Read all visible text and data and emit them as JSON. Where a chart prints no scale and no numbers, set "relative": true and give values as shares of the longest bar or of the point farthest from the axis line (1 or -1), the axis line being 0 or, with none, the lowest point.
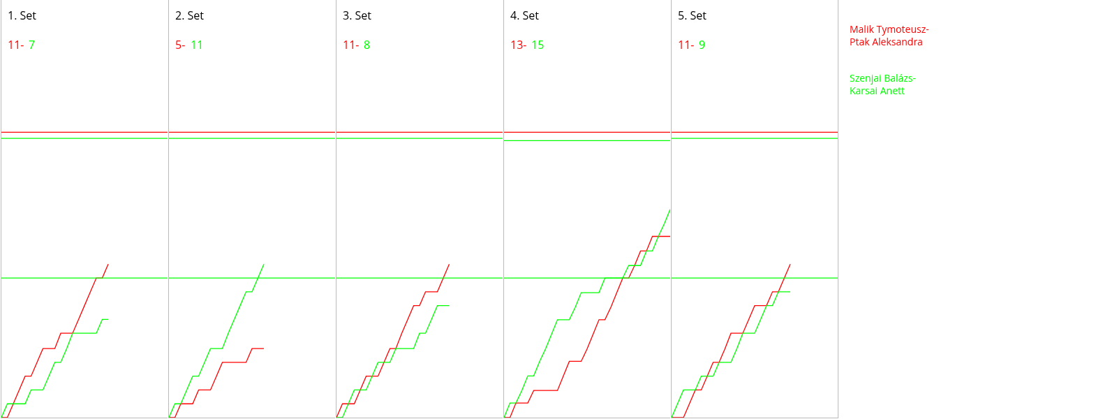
{
  "chart_data": [
    {
      "type": "line",
      "relative": true,
      "title": "1. Set",
      "annotations": [
        "11-",
        "7"
      ],
      "categories": [
        null,
        null,
        null,
        null,
        null,
        null,
        null,
        null,
        null,
        null,
        null,
        null,
        null,
        null,
        null,
        null,
        null,
        null,
        null
      ],
      "series": [
        {
          "color": "#ff0000",
          "values": [
            0,
            0,
            0.09,
            0.18,
            0.27,
            0.27,
            0.36,
            0.45,
            0.45,
            0.45,
            0.55,
            0.55,
            0.55,
            0.64,
            0.73,
            0.82,
            0.91,
            0.91,
            1
          ]
        },
        {
          "color": "#00ff00",
          "values": [
            0,
            0.09,
            0.09,
            0.09,
            0.09,
            0.18,
            0.18,
            0.18,
            0.27,
            0.36,
            0.36,
            0.45,
            0.55,
            0.55,
            0.55,
            0.55,
            0.55,
            0.64,
            0.64
          ]
        }
      ],
      "ref_lines": [
        {
          "axis": "y",
          "value": 1.86,
          "color": "#ff0000"
        },
        {
          "axis": "y",
          "value": 1.82,
          "color": "#00ff00"
        },
        {
          "axis": "y",
          "value": 0.91,
          "color": "#00ff00"
        }
      ]
    },
    {
      "type": "line",
      "relative": true,
      "title": "2. Set",
      "annotations": [
        "5-",
        "11"
      ],
      "categories": [
        null,
        null,
        null,
        null,
        null,
        null,
        null,
        null,
        null,
        null,
        null,
        null,
        null,
        null,
        null,
        null,
        null
      ],
      "series": [
        {
          "color": "#ff0000",
          "values": [
            0,
            0,
            0.09,
            0.09,
            0.09,
            0.18,
            0.18,
            0.18,
            0.27,
            0.36,
            0.36,
            0.36,
            0.36,
            0.36,
            0.45,
            0.45,
            0.45
          ]
        },
        {
          "color": "#00ff00",
          "values": [
            0,
            0.09,
            0.09,
            0.18,
            0.27,
            0.27,
            0.36,
            0.45,
            0.45,
            0.45,
            0.55,
            0.64,
            0.73,
            0.82,
            0.82,
            0.91,
            1
          ]
        }
      ],
      "ref_lines": [
        {
          "axis": "y",
          "value": 1.86,
          "color": "#ff0000"
        },
        {
          "axis": "y",
          "value": 1.82,
          "color": "#00ff00"
        },
        {
          "axis": "y",
          "value": 0.91,
          "color": "#00ff00"
        }
      ]
    },
    {
      "type": "line",
      "relative": true,
      "title": "3. Set",
      "annotations": [
        "11-",
        "8"
      ],
      "categories": [
        null,
        null,
        null,
        null,
        null,
        null,
        null,
        null,
        null,
        null,
        null,
        null,
        null,
        null,
        null,
        null,
        null,
        null,
        null,
        null
      ],
      "series": [
        {
          "color": "#ff0000",
          "values": [
            0,
            0.09,
            0.09,
            0.09,
            0.18,
            0.27,
            0.27,
            0.27,
            0.36,
            0.45,
            0.45,
            0.55,
            0.64,
            0.73,
            0.73,
            0.82,
            0.82,
            0.82,
            0.91,
            1
          ]
        },
        {
          "color": "#00ff00",
          "values": [
            0,
            0,
            0.09,
            0.18,
            0.18,
            0.18,
            0.27,
            0.36,
            0.36,
            0.36,
            0.45,
            0.45,
            0.45,
            0.45,
            0.55,
            0.55,
            0.64,
            0.73,
            0.73,
            0.73
          ]
        }
      ],
      "ref_lines": [
        {
          "axis": "y",
          "value": 1.86,
          "color": "#ff0000"
        },
        {
          "axis": "y",
          "value": 1.82,
          "color": "#00ff00"
        },
        {
          "axis": "y",
          "value": 0.91,
          "color": "#00ff00"
        }
      ]
    },
    {
      "type": "line",
      "relative": true,
      "title": "4. Set",
      "annotations": [
        "13-",
        "15"
      ],
      "categories": [
        null,
        null,
        null,
        null,
        null,
        null,
        null,
        null,
        null,
        null,
        null,
        null,
        null,
        null,
        null,
        null,
        null,
        null,
        null,
        null,
        null,
        null,
        null,
        null,
        null,
        null,
        null,
        null,
        null
      ],
      "series": [
        {
          "color": "#ff0000",
          "values": [
            0,
            0,
            0.07,
            0.07,
            0.07,
            0.13,
            0.13,
            0.13,
            0.13,
            0.13,
            0.2,
            0.27,
            0.27,
            0.27,
            0.33,
            0.4,
            0.47,
            0.47,
            0.53,
            0.6,
            0.67,
            0.67,
            0.73,
            0.8,
            0.8,
            0.87,
            0.87,
            0.87,
            0.87
          ]
        },
        {
          "color": "#00ff00",
          "values": [
            0,
            0.07,
            0.07,
            0.13,
            0.2,
            0.2,
            0.27,
            0.33,
            0.4,
            0.47,
            0.47,
            0.47,
            0.53,
            0.6,
            0.6,
            0.6,
            0.6,
            0.67,
            0.67,
            0.67,
            0.67,
            0.73,
            0.73,
            0.73,
            0.8,
            0.8,
            0.87,
            0.93,
            1
          ]
        }
      ],
      "ref_lines": [
        {
          "axis": "y",
          "value": 1.37,
          "color": "#ff0000"
        },
        {
          "axis": "y",
          "value": 1.33,
          "color": "#00ff00"
        },
        {
          "axis": "y",
          "value": 0.67,
          "color": "#00ff00"
        }
      ]
    },
    {
      "type": "line",
      "relative": true,
      "title": "5. Set",
      "annotations": [
        "11-",
        "9"
      ],
      "categories": [
        null,
        null,
        null,
        null,
        null,
        null,
        null,
        null,
        null,
        null,
        null,
        null,
        null,
        null,
        null,
        null,
        null,
        null,
        null,
        null,
        null
      ],
      "series": [
        {
          "name": "Malik Tymoteusz-Ptak Aleksandra",
          "color": "#ff0000",
          "values": [
            0,
            0,
            0,
            0.09,
            0.18,
            0.18,
            0.27,
            0.36,
            0.36,
            0.45,
            0.55,
            0.55,
            0.55,
            0.64,
            0.73,
            0.73,
            0.73,
            0.82,
            0.82,
            0.91,
            1
          ]
        },
        {
          "name": "Szenjai Balázs-Karsai Anett",
          "color": "#00ff00",
          "values": [
            0,
            0.09,
            0.18,
            0.18,
            0.18,
            0.27,
            0.27,
            0.27,
            0.36,
            0.36,
            0.36,
            0.45,
            0.55,
            0.55,
            0.55,
            0.64,
            0.73,
            0.73,
            0.82,
            0.82,
            0.82
          ]
        }
      ],
      "ref_lines": [
        {
          "axis": "y",
          "value": 1.86,
          "color": "#ff0000"
        },
        {
          "axis": "y",
          "value": 1.82,
          "color": "#00ff00"
        },
        {
          "axis": "y",
          "value": 0.91,
          "color": "#00ff00"
        }
      ]
    }
  ]
}
